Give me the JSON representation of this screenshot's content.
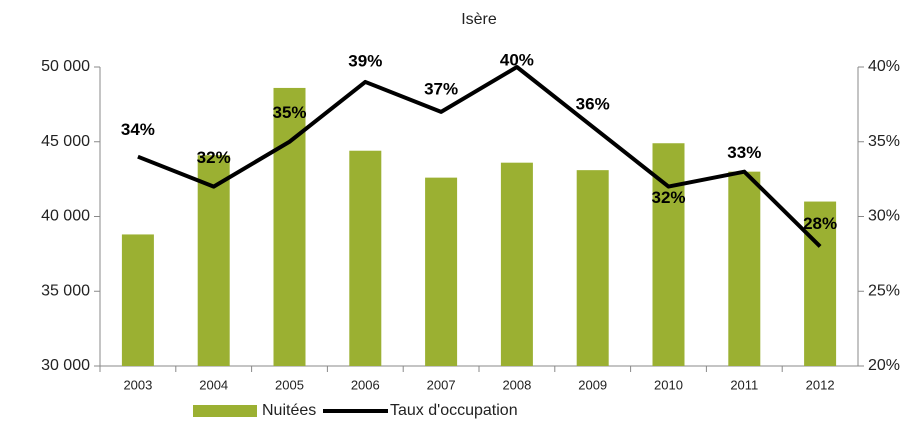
{
  "chart_data": {
    "type": "bar",
    "subtitle": "Isère",
    "categories": [
      "2003",
      "2004",
      "2005",
      "2006",
      "2007",
      "2008",
      "2009",
      "2010",
      "2011",
      "2012"
    ],
    "series": [
      {
        "name": "Nuitées",
        "type": "bar",
        "color": "#9bb032",
        "values": [
          38800,
          44100,
          48600,
          44400,
          42600,
          43600,
          43100,
          44900,
          43000,
          41000
        ]
      },
      {
        "name": "Taux d'occupation",
        "type": "line",
        "axis": "y2",
        "color": "#000000",
        "values": [
          34,
          32,
          35,
          39,
          37,
          40,
          36,
          32,
          33,
          28
        ],
        "value_labels": [
          "34%",
          "32%",
          "35%",
          "39%",
          "37%",
          "40%",
          "36%",
          "32%",
          "33%",
          "28%"
        ]
      }
    ],
    "ylim": [
      30000,
      50000
    ],
    "yticks": [
      {
        "value": 30000,
        "label": "30 000"
      },
      {
        "value": 35000,
        "label": "35 000"
      },
      {
        "value": 40000,
        "label": "40 000"
      },
      {
        "value": 45000,
        "label": "45 000"
      },
      {
        "value": 50000,
        "label": "50 000"
      }
    ],
    "y2lim": [
      20,
      40
    ],
    "y2ticks": [
      {
        "value": 20,
        "label": "20%"
      },
      {
        "value": 25,
        "label": "25%"
      },
      {
        "value": 30,
        "label": "30%"
      },
      {
        "value": 35,
        "label": "35%"
      },
      {
        "value": 40,
        "label": "40%"
      }
    ],
    "legend": "bottom"
  }
}
